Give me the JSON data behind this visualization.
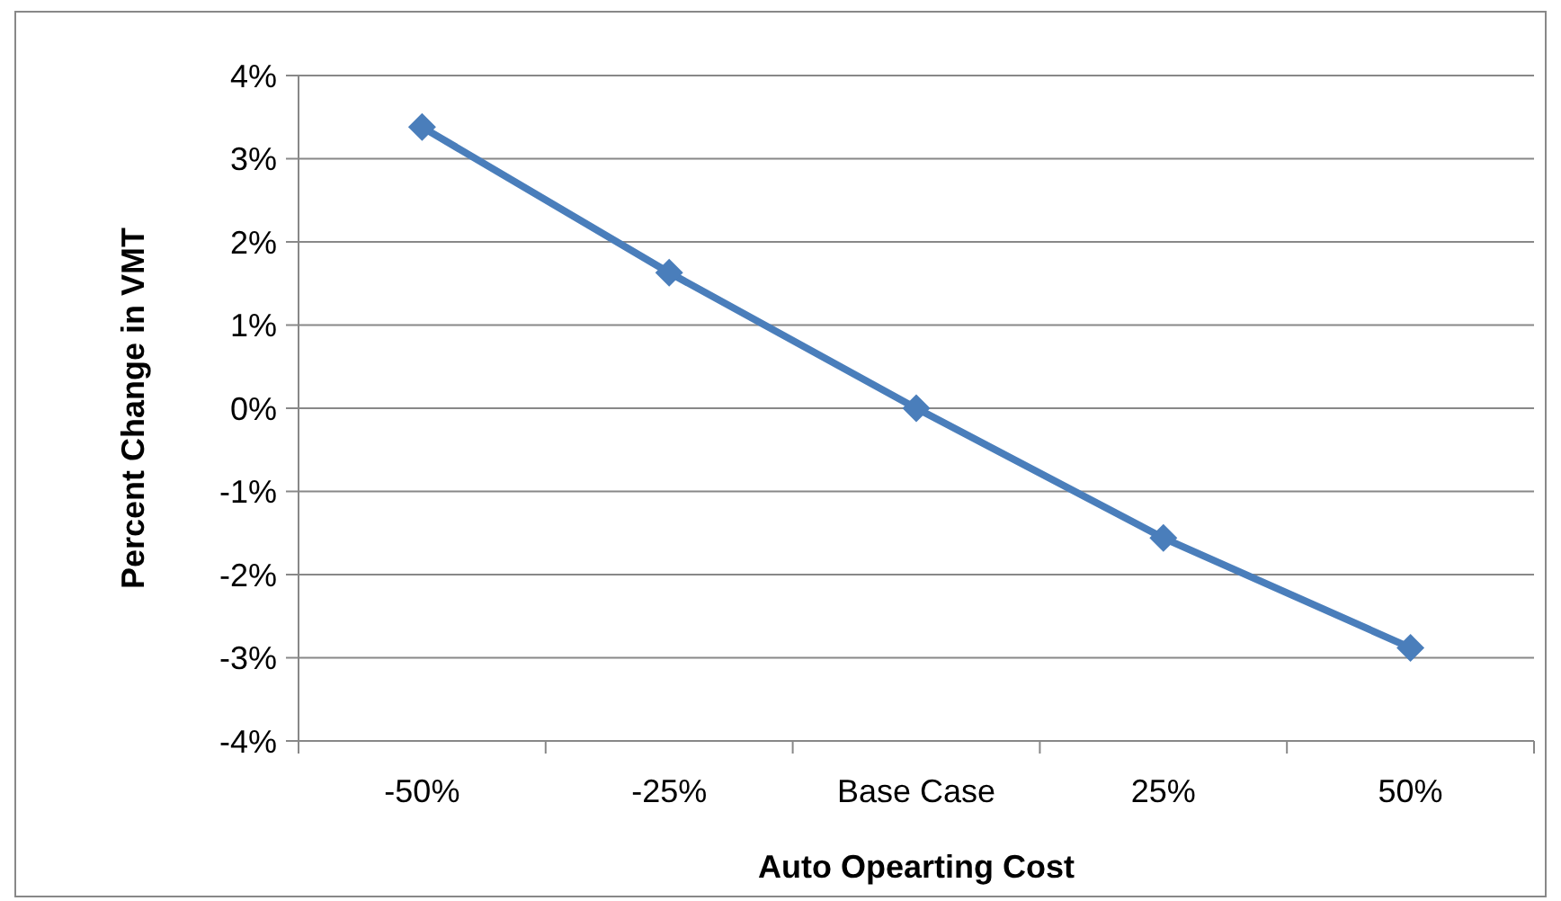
{
  "chart_data": {
    "type": "line",
    "xlabel": "Auto Opearting Cost",
    "ylabel": "Percent Change in VMT",
    "categories": [
      "-50%",
      "-25%",
      "Base Case",
      "25%",
      "50%"
    ],
    "series": [
      {
        "color": "#4a7ebb",
        "values": [
          3.38,
          1.63,
          0,
          -1.56,
          -2.88
        ]
      }
    ],
    "ylim": [
      -4,
      4
    ],
    "yticks": [
      {
        "value": -4,
        "label": "-4%"
      },
      {
        "value": -3,
        "label": "-3%"
      },
      {
        "value": -2,
        "label": "-2%"
      },
      {
        "value": -1,
        "label": "-1%"
      },
      {
        "value": 0,
        "label": "0%"
      },
      {
        "value": 1,
        "label": "1%"
      },
      {
        "value": 2,
        "label": "2%"
      },
      {
        "value": 3,
        "label": "3%"
      },
      {
        "value": 4,
        "label": "4%"
      }
    ],
    "grid": "y",
    "marker": "diamond",
    "line_style": "solid"
  }
}
